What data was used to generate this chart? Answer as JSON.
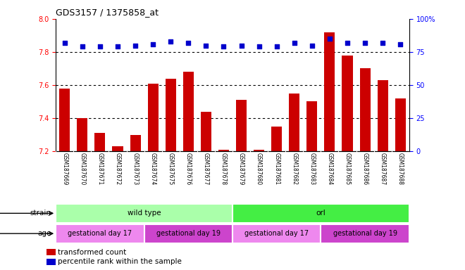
{
  "title": "GDS3157 / 1375858_at",
  "samples": [
    "GSM187669",
    "GSM187670",
    "GSM187671",
    "GSM187672",
    "GSM187673",
    "GSM187674",
    "GSM187675",
    "GSM187676",
    "GSM187677",
    "GSM187678",
    "GSM187679",
    "GSM187680",
    "GSM187681",
    "GSM187682",
    "GSM187683",
    "GSM187684",
    "GSM187685",
    "GSM187686",
    "GSM187687",
    "GSM187688"
  ],
  "bar_values": [
    7.58,
    7.4,
    7.31,
    7.23,
    7.3,
    7.61,
    7.64,
    7.68,
    7.44,
    7.21,
    7.51,
    7.21,
    7.35,
    7.55,
    7.5,
    7.92,
    7.78,
    7.7,
    7.63,
    7.52
  ],
  "percentile_values": [
    82,
    79,
    79,
    79,
    80,
    81,
    83,
    82,
    80,
    79,
    80,
    79,
    79,
    82,
    80,
    85,
    82,
    82,
    82,
    81
  ],
  "y_min": 7.2,
  "y_max": 8.0,
  "y_ticks": [
    7.2,
    7.4,
    7.6,
    7.8,
    8.0
  ],
  "right_y_ticks": [
    0,
    25,
    50,
    75,
    100
  ],
  "right_y_labels": [
    "0",
    "25",
    "50",
    "75",
    "100%"
  ],
  "bar_color": "#cc0000",
  "dot_color": "#0000cc",
  "bar_bottom": 7.2,
  "strain_groups": [
    {
      "label": "wild type",
      "start": 0,
      "end": 10,
      "color": "#aaffaa"
    },
    {
      "label": "orl",
      "start": 10,
      "end": 20,
      "color": "#44ee44"
    }
  ],
  "age_groups": [
    {
      "label": "gestational day 17",
      "start": 0,
      "end": 5,
      "color": "#ee88ee"
    },
    {
      "label": "gestational day 19",
      "start": 5,
      "end": 10,
      "color": "#cc44cc"
    },
    {
      "label": "gestational day 17",
      "start": 10,
      "end": 15,
      "color": "#ee88ee"
    },
    {
      "label": "gestational day 19",
      "start": 15,
      "end": 20,
      "color": "#cc44cc"
    }
  ],
  "dotted_line_values": [
    7.8,
    7.6,
    7.4
  ],
  "bg_color": "#ffffff",
  "label_area_color": "#cccccc",
  "strain_light_color": "#aaffaa",
  "strain_dark_color": "#44ee44",
  "age_light_color": "#ee88ee",
  "age_dark_color": "#cc44cc"
}
